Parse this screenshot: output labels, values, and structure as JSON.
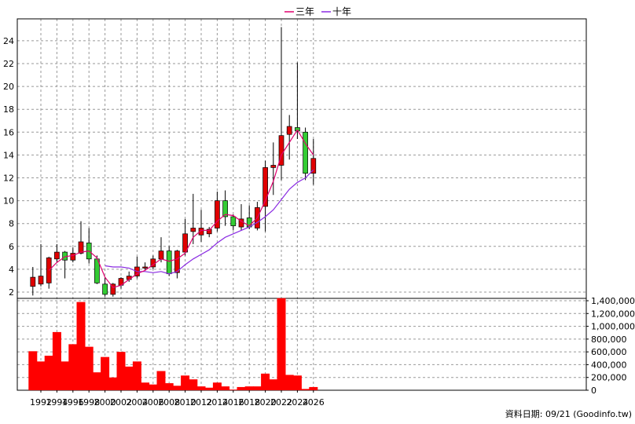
{
  "chart_data": {
    "type": "candlestick-volume",
    "legend": [
      {
        "label": "三年",
        "color": "#e0006e"
      },
      {
        "label": "十年",
        "color": "#8a2be2"
      }
    ],
    "source_text": "資料日期: 09/21 (Goodinfo.tw)",
    "colors": {
      "up": "#e00000",
      "down": "#33cc33",
      "volume": "#ff0000",
      "grid": "#999999",
      "axis": "#000000"
    },
    "x_ticks": [
      "1992",
      "1994",
      "1996",
      "1998",
      "2000",
      "2002",
      "2004",
      "2006",
      "2008",
      "2010",
      "2012",
      "2014",
      "2016",
      "2018",
      "2020",
      "2022",
      "2024",
      "2026"
    ],
    "price_axis": {
      "min": 1,
      "max": 26,
      "ticks": [
        2,
        4,
        6,
        8,
        10,
        12,
        14,
        16,
        18,
        20,
        22,
        24
      ]
    },
    "volume_axis": {
      "min": 0,
      "max": 1400000,
      "ticks": [
        0,
        200000,
        400000,
        600000,
        800000,
        1000000,
        1200000,
        1400000
      ],
      "tick_labels": [
        "0",
        "200,000",
        "400,000",
        "600,000",
        "800,000",
        "1,000,000",
        "1,200,000",
        "1,400,000"
      ]
    },
    "candles": [
      {
        "year": 1991,
        "open": 2.5,
        "high": 4.2,
        "low": 1.7,
        "close": 3.3
      },
      {
        "year": 1992,
        "open": 2.7,
        "high": 6.2,
        "low": 2.5,
        "close": 3.4
      },
      {
        "year": 1993,
        "open": 2.8,
        "high": 5.1,
        "low": 2.3,
        "close": 5.0
      },
      {
        "year": 1994,
        "open": 4.9,
        "high": 6.2,
        "low": 4.6,
        "close": 5.5
      },
      {
        "year": 1995,
        "open": 5.5,
        "high": 5.6,
        "low": 3.2,
        "close": 4.8
      },
      {
        "year": 1996,
        "open": 4.8,
        "high": 5.9,
        "low": 4.6,
        "close": 5.4
      },
      {
        "year": 1997,
        "open": 5.4,
        "high": 8.2,
        "low": 5.3,
        "close": 6.4
      },
      {
        "year": 1998,
        "open": 6.3,
        "high": 7.6,
        "low": 4.5,
        "close": 4.9
      },
      {
        "year": 1999,
        "open": 4.9,
        "high": 5.2,
        "low": 2.7,
        "close": 2.8
      },
      {
        "year": 2000,
        "open": 2.7,
        "high": 3.3,
        "low": 1.6,
        "close": 1.8
      },
      {
        "year": 2001,
        "open": 1.8,
        "high": 2.8,
        "low": 1.6,
        "close": 2.7
      },
      {
        "year": 2002,
        "open": 2.6,
        "high": 3.3,
        "low": 2.3,
        "close": 3.2
      },
      {
        "year": 2003,
        "open": 3.1,
        "high": 3.8,
        "low": 2.9,
        "close": 3.4
      },
      {
        "year": 2004,
        "open": 3.4,
        "high": 5.1,
        "low": 3.2,
        "close": 4.2
      },
      {
        "year": 2005,
        "open": 4.1,
        "high": 4.6,
        "low": 3.9,
        "close": 4.2
      },
      {
        "year": 2006,
        "open": 4.2,
        "high": 5.2,
        "low": 4.0,
        "close": 4.9
      },
      {
        "year": 2007,
        "open": 4.9,
        "high": 6.8,
        "low": 4.6,
        "close": 5.6
      },
      {
        "year": 2008,
        "open": 5.6,
        "high": 6.0,
        "low": 3.4,
        "close": 3.6
      },
      {
        "year": 2009,
        "open": 3.7,
        "high": 5.7,
        "low": 3.2,
        "close": 5.6
      },
      {
        "year": 2010,
        "open": 5.5,
        "high": 8.4,
        "low": 5.2,
        "close": 7.1
      },
      {
        "year": 2011,
        "open": 7.3,
        "high": 10.6,
        "low": 6.2,
        "close": 7.6
      },
      {
        "year": 2012,
        "open": 7.0,
        "high": 9.2,
        "low": 6.4,
        "close": 7.6
      },
      {
        "year": 2013,
        "open": 7.1,
        "high": 7.7,
        "low": 6.8,
        "close": 7.5
      },
      {
        "year": 2014,
        "open": 7.6,
        "high": 10.8,
        "low": 7.3,
        "close": 10.0
      },
      {
        "year": 2015,
        "open": 10.0,
        "high": 10.9,
        "low": 7.8,
        "close": 8.6
      },
      {
        "year": 2016,
        "open": 8.6,
        "high": 8.8,
        "low": 7.4,
        "close": 7.8
      },
      {
        "year": 2017,
        "open": 7.7,
        "high": 9.7,
        "low": 7.4,
        "close": 8.4
      },
      {
        "year": 2018,
        "open": 8.5,
        "high": 9.6,
        "low": 7.5,
        "close": 7.7
      },
      {
        "year": 2019,
        "open": 7.6,
        "high": 9.9,
        "low": 7.4,
        "close": 9.4
      },
      {
        "year": 2020,
        "open": 9.5,
        "high": 13.5,
        "low": 7.3,
        "close": 12.9
      },
      {
        "year": 2021,
        "open": 12.9,
        "high": 15.1,
        "low": 10.5,
        "close": 13.1
      },
      {
        "year": 2022,
        "open": 13.1,
        "high": 25.2,
        "low": 11.8,
        "close": 15.7
      },
      {
        "year": 2023,
        "open": 15.8,
        "high": 17.5,
        "low": 13.6,
        "close": 16.5
      },
      {
        "year": 2024,
        "open": 16.4,
        "high": 22.1,
        "low": 15.4,
        "close": 16.1
      },
      {
        "year": 2025,
        "open": 16.0,
        "high": 16.4,
        "low": 11.8,
        "close": 12.4
      },
      {
        "year": 2026,
        "open": 12.4,
        "high": 15.4,
        "low": 11.4,
        "close": 13.7
      }
    ],
    "ma3": [
      {
        "year": 1993,
        "value": 3.9
      },
      {
        "year": 1994,
        "value": 4.6
      },
      {
        "year": 1995,
        "value": 5.1
      },
      {
        "year": 1996,
        "value": 5.2
      },
      {
        "year": 1997,
        "value": 5.5
      },
      {
        "year": 1998,
        "value": 5.6
      },
      {
        "year": 1999,
        "value": 5.0
      },
      {
        "year": 2000,
        "value": 3.3
      },
      {
        "year": 2001,
        "value": 2.4
      },
      {
        "year": 2002,
        "value": 2.6
      },
      {
        "year": 2003,
        "value": 3.1
      },
      {
        "year": 2004,
        "value": 3.6
      },
      {
        "year": 2005,
        "value": 3.9
      },
      {
        "year": 2006,
        "value": 4.4
      },
      {
        "year": 2007,
        "value": 4.9
      },
      {
        "year": 2008,
        "value": 4.7
      },
      {
        "year": 2009,
        "value": 4.9
      },
      {
        "year": 2010,
        "value": 5.4
      },
      {
        "year": 2011,
        "value": 6.8
      },
      {
        "year": 2012,
        "value": 7.4
      },
      {
        "year": 2013,
        "value": 7.4
      },
      {
        "year": 2014,
        "value": 8.2
      },
      {
        "year": 2015,
        "value": 8.8
      },
      {
        "year": 2016,
        "value": 8.7
      },
      {
        "year": 2017,
        "value": 8.2
      },
      {
        "year": 2018,
        "value": 7.8
      },
      {
        "year": 2019,
        "value": 8.5
      },
      {
        "year": 2020,
        "value": 10.0
      },
      {
        "year": 2021,
        "value": 11.7
      },
      {
        "year": 2022,
        "value": 14.0
      },
      {
        "year": 2023,
        "value": 15.1
      },
      {
        "year": 2024,
        "value": 16.2
      },
      {
        "year": 2025,
        "value": 15.0
      },
      {
        "year": 2026,
        "value": 14.0
      }
    ],
    "ma10": [
      {
        "year": 2000,
        "value": 4.3
      },
      {
        "year": 2001,
        "value": 4.2
      },
      {
        "year": 2002,
        "value": 4.2
      },
      {
        "year": 2003,
        "value": 4.1
      },
      {
        "year": 2004,
        "value": 3.8
      },
      {
        "year": 2005,
        "value": 3.8
      },
      {
        "year": 2006,
        "value": 3.7
      },
      {
        "year": 2007,
        "value": 3.8
      },
      {
        "year": 2008,
        "value": 3.6
      },
      {
        "year": 2009,
        "value": 3.8
      },
      {
        "year": 2010,
        "value": 4.4
      },
      {
        "year": 2011,
        "value": 4.9
      },
      {
        "year": 2012,
        "value": 5.3
      },
      {
        "year": 2013,
        "value": 5.7
      },
      {
        "year": 2014,
        "value": 6.3
      },
      {
        "year": 2015,
        "value": 6.8
      },
      {
        "year": 2016,
        "value": 7.1
      },
      {
        "year": 2017,
        "value": 7.4
      },
      {
        "year": 2018,
        "value": 7.7
      },
      {
        "year": 2019,
        "value": 8.1
      },
      {
        "year": 2020,
        "value": 8.6
      },
      {
        "year": 2021,
        "value": 9.2
      },
      {
        "year": 2022,
        "value": 10.1
      },
      {
        "year": 2023,
        "value": 11.0
      },
      {
        "year": 2024,
        "value": 11.6
      },
      {
        "year": 2025,
        "value": 12.0
      },
      {
        "year": 2026,
        "value": 12.7
      }
    ],
    "volume": [
      {
        "year": 1991,
        "value": 610000
      },
      {
        "year": 1992,
        "value": 450000
      },
      {
        "year": 1993,
        "value": 540000
      },
      {
        "year": 1994,
        "value": 910000
      },
      {
        "year": 1995,
        "value": 450000
      },
      {
        "year": 1996,
        "value": 720000
      },
      {
        "year": 1997,
        "value": 1380000
      },
      {
        "year": 1998,
        "value": 680000
      },
      {
        "year": 1999,
        "value": 280000
      },
      {
        "year": 2000,
        "value": 520000
      },
      {
        "year": 2001,
        "value": 200000
      },
      {
        "year": 2002,
        "value": 600000
      },
      {
        "year": 2003,
        "value": 370000
      },
      {
        "year": 2004,
        "value": 450000
      },
      {
        "year": 2005,
        "value": 120000
      },
      {
        "year": 2006,
        "value": 90000
      },
      {
        "year": 2007,
        "value": 300000
      },
      {
        "year": 2008,
        "value": 110000
      },
      {
        "year": 2009,
        "value": 70000
      },
      {
        "year": 2010,
        "value": 230000
      },
      {
        "year": 2011,
        "value": 170000
      },
      {
        "year": 2012,
        "value": 60000
      },
      {
        "year": 2013,
        "value": 40000
      },
      {
        "year": 2014,
        "value": 120000
      },
      {
        "year": 2015,
        "value": 60000
      },
      {
        "year": 2016,
        "value": 10000
      },
      {
        "year": 2017,
        "value": 50000
      },
      {
        "year": 2018,
        "value": 60000
      },
      {
        "year": 2019,
        "value": 60000
      },
      {
        "year": 2020,
        "value": 260000
      },
      {
        "year": 2021,
        "value": 170000
      },
      {
        "year": 2022,
        "value": 1440000
      },
      {
        "year": 2023,
        "value": 240000
      },
      {
        "year": 2024,
        "value": 230000
      },
      {
        "year": 2025,
        "value": 20000
      },
      {
        "year": 2026,
        "value": 50000
      }
    ]
  }
}
